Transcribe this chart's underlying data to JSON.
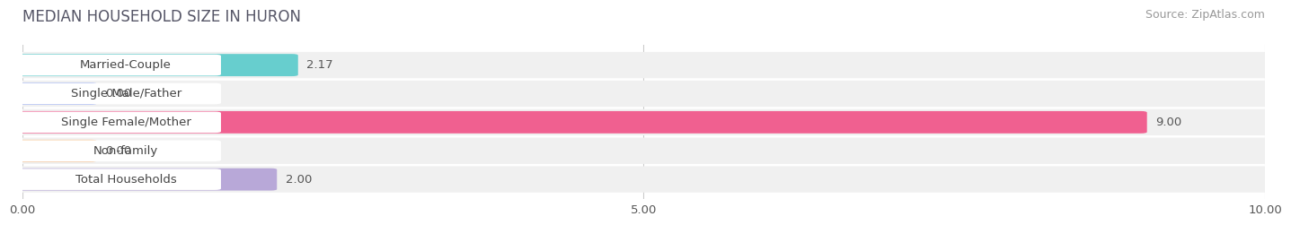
{
  "title": "MEDIAN HOUSEHOLD SIZE IN HURON",
  "source": "Source: ZipAtlas.com",
  "categories": [
    "Married-Couple",
    "Single Male/Father",
    "Single Female/Mother",
    "Non-family",
    "Total Households"
  ],
  "values": [
    2.17,
    0.0,
    9.0,
    0.0,
    2.0
  ],
  "bar_colors": [
    "#67cece",
    "#a8b8f0",
    "#f06090",
    "#f8c898",
    "#b8a8d8"
  ],
  "row_bg_color": "#f0f0f0",
  "xlim": [
    0,
    10
  ],
  "xticks": [
    0.0,
    5.0,
    10.0
  ],
  "xtick_labels": [
    "0.00",
    "5.00",
    "10.00"
  ],
  "title_fontsize": 12,
  "label_fontsize": 9.5,
  "value_fontsize": 9.5,
  "source_fontsize": 9,
  "background_color": "#ffffff",
  "min_bar_width": 0.55
}
